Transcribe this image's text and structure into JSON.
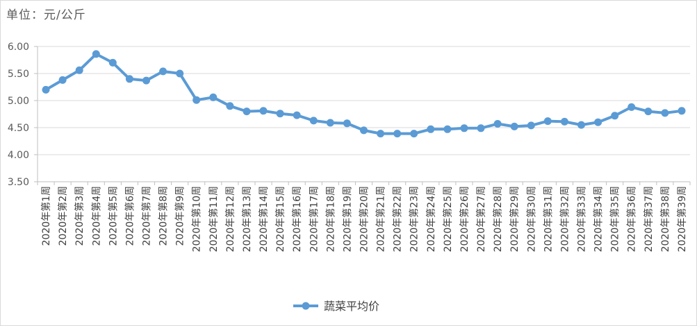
{
  "chart_data": {
    "type": "line",
    "unit_label": "单位：元/公斤",
    "series": [
      {
        "name": "蔬菜平均价",
        "color": "#5b9bd5",
        "values": [
          5.2,
          5.38,
          5.56,
          5.86,
          5.7,
          5.4,
          5.37,
          5.54,
          5.5,
          5.01,
          5.06,
          4.9,
          4.8,
          4.81,
          4.76,
          4.73,
          4.63,
          4.59,
          4.58,
          4.45,
          4.39,
          4.39,
          4.39,
          4.47,
          4.47,
          4.49,
          4.49,
          4.57,
          4.52,
          4.54,
          4.62,
          4.61,
          4.55,
          4.6,
          4.72,
          4.88,
          4.8,
          4.77,
          4.81
        ]
      }
    ],
    "categories": [
      "2020年第1周",
      "2020年第2周",
      "2020年第3周",
      "2020年第4周",
      "2020年第5周",
      "2020年第6周",
      "2020年第7周",
      "2020年第8周",
      "2020年第9周",
      "2020年第10周",
      "2020年第11周",
      "2020年第12周",
      "2020年第13周",
      "2020年第14周",
      "2020年第15周",
      "2020年第16周",
      "2020年第17周",
      "2020年第18周",
      "2020年第19周",
      "2020年第20周",
      "2020年第21周",
      "2020年第22周",
      "2020年第23周",
      "2020年第24周",
      "2020年第25周",
      "2020年第26周",
      "2020年第27周",
      "2020年第28周",
      "2020年第29周",
      "2020年第30周",
      "2020年第31周",
      "2020年第32周",
      "2020年第33周",
      "2020年第34周",
      "2020年第35周",
      "2020年第36周",
      "2020年第37周",
      "2020年第38周",
      "2020年第39周"
    ],
    "yticks": [
      "6.00",
      "5.50",
      "5.00",
      "4.50",
      "4.00",
      "3.50"
    ],
    "ylim": [
      3.5,
      6.0
    ],
    "grid": true,
    "legend_position": "bottom-center"
  }
}
